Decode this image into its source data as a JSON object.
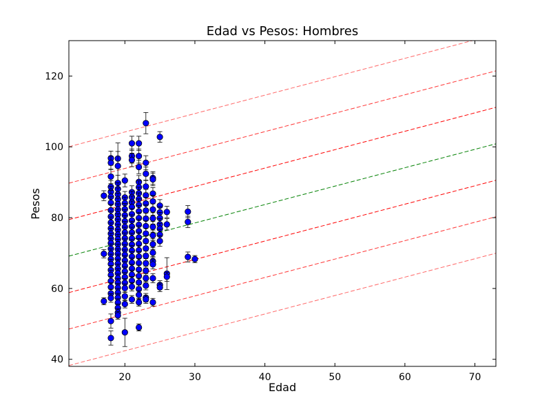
{
  "chart_data": {
    "type": "scatter",
    "title": "Edad vs Pesos: Hombres",
    "xlabel": "Edad",
    "ylabel": "Pesos",
    "xlim": [
      12,
      73
    ],
    "ylim": [
      38,
      130
    ],
    "xticks": [
      20,
      30,
      40,
      50,
      60,
      70
    ],
    "yticks": [
      40,
      60,
      80,
      100,
      120
    ],
    "grid": false,
    "marker_color": "#0000ff",
    "errorbar_color": "#000000",
    "fit_line": {
      "slope": 0.52,
      "intercept": 62.9,
      "color": "#008000"
    },
    "band_lines": [
      {
        "offset": 10.3,
        "color": "#ff0000",
        "opacity": 1.0
      },
      {
        "offset": -10.3,
        "color": "#ff0000",
        "opacity": 1.0
      },
      {
        "offset": 20.6,
        "color": "#ff0000",
        "opacity": 0.8
      },
      {
        "offset": -20.6,
        "color": "#ff0000",
        "opacity": 0.8
      },
      {
        "offset": 30.9,
        "color": "#ff0000",
        "opacity": 0.6
      },
      {
        "offset": -30.9,
        "color": "#ff0000",
        "opacity": 0.6
      }
    ],
    "points": [
      [
        17,
        86.2,
        1.4
      ],
      [
        17,
        69.8,
        1.2
      ],
      [
        17,
        56.4,
        1.0
      ],
      [
        18,
        96.8,
        2.0
      ],
      [
        18,
        95.5,
        1.8
      ],
      [
        18,
        91.6,
        2.0
      ],
      [
        18,
        88.7,
        1.8
      ],
      [
        18,
        87.3,
        1.6
      ],
      [
        18,
        85.9,
        1.8
      ],
      [
        18,
        84.2,
        1.7
      ],
      [
        18,
        82.1,
        1.7
      ],
      [
        18,
        80.3,
        1.6
      ],
      [
        18,
        78.6,
        1.6
      ],
      [
        18,
        77.0,
        1.5
      ],
      [
        18,
        75.5,
        1.5
      ],
      [
        18,
        74.1,
        1.5
      ],
      [
        18,
        72.8,
        1.4
      ],
      [
        18,
        71.2,
        1.4
      ],
      [
        18,
        69.8,
        1.4
      ],
      [
        18,
        68.3,
        1.4
      ],
      [
        18,
        66.9,
        1.3
      ],
      [
        18,
        65.2,
        1.3
      ],
      [
        18,
        63.8,
        1.3
      ],
      [
        18,
        62.1,
        1.3
      ],
      [
        18,
        60.4,
        1.2
      ],
      [
        18,
        58.6,
        1.2
      ],
      [
        18,
        57.3,
        1.2
      ],
      [
        18,
        50.8,
        2.0
      ],
      [
        18,
        46.0,
        2.0
      ],
      [
        19,
        96.7,
        2.0
      ],
      [
        19,
        94.6,
        6.5
      ],
      [
        19,
        89.8,
        2.2
      ],
      [
        19,
        88.1,
        1.8
      ],
      [
        19,
        86.6,
        1.8
      ],
      [
        19,
        85.2,
        1.7
      ],
      [
        19,
        83.8,
        1.7
      ],
      [
        19,
        82.3,
        1.6
      ],
      [
        19,
        80.9,
        1.6
      ],
      [
        19,
        79.5,
        1.6
      ],
      [
        19,
        78.1,
        1.5
      ],
      [
        19,
        76.6,
        1.5
      ],
      [
        19,
        75.2,
        1.5
      ],
      [
        19,
        73.9,
        1.4
      ],
      [
        19,
        72.5,
        1.4
      ],
      [
        19,
        71.1,
        1.4
      ],
      [
        19,
        69.8,
        1.4
      ],
      [
        19,
        68.4,
        1.3
      ],
      [
        19,
        67.0,
        1.3
      ],
      [
        19,
        65.6,
        1.3
      ],
      [
        19,
        64.3,
        1.3
      ],
      [
        19,
        62.9,
        1.2
      ],
      [
        19,
        61.6,
        1.2
      ],
      [
        19,
        60.2,
        1.2
      ],
      [
        19,
        58.8,
        1.2
      ],
      [
        19,
        57.4,
        1.2
      ],
      [
        19,
        56.0,
        1.1
      ],
      [
        19,
        54.5,
        1.1
      ],
      [
        19,
        53.2,
        1.1
      ],
      [
        19,
        52.4,
        1.1
      ],
      [
        20,
        90.5,
        1.8
      ],
      [
        20,
        85.7,
        1.7
      ],
      [
        20,
        84.1,
        1.7
      ],
      [
        20,
        82.4,
        1.6
      ],
      [
        20,
        80.7,
        1.6
      ],
      [
        20,
        79.0,
        1.6
      ],
      [
        20,
        77.4,
        1.5
      ],
      [
        20,
        75.8,
        1.5
      ],
      [
        20,
        74.2,
        1.5
      ],
      [
        20,
        72.6,
        1.4
      ],
      [
        20,
        71.0,
        1.4
      ],
      [
        20,
        69.5,
        1.4
      ],
      [
        20,
        67.9,
        1.3
      ],
      [
        20,
        66.4,
        1.3
      ],
      [
        20,
        64.8,
        1.3
      ],
      [
        20,
        63.2,
        1.3
      ],
      [
        20,
        61.6,
        1.2
      ],
      [
        20,
        60.1,
        1.2
      ],
      [
        20,
        57.8,
        1.2
      ],
      [
        20,
        55.6,
        1.1
      ],
      [
        20,
        47.6,
        4.0
      ],
      [
        21,
        101.0,
        2.0
      ],
      [
        21,
        97.4,
        2.0
      ],
      [
        21,
        96.3,
        1.9
      ],
      [
        21,
        87.2,
        1.8
      ],
      [
        21,
        85.8,
        1.7
      ],
      [
        21,
        84.4,
        1.7
      ],
      [
        21,
        83.0,
        1.7
      ],
      [
        21,
        81.0,
        1.6
      ],
      [
        21,
        79.2,
        1.6
      ],
      [
        21,
        77.5,
        1.5
      ],
      [
        21,
        75.8,
        1.5
      ],
      [
        21,
        74.1,
        1.5
      ],
      [
        21,
        72.4,
        1.4
      ],
      [
        21,
        70.7,
        1.4
      ],
      [
        21,
        69.0,
        1.4
      ],
      [
        21,
        67.3,
        1.3
      ],
      [
        21,
        65.6,
        1.3
      ],
      [
        21,
        63.9,
        1.3
      ],
      [
        21,
        62.2,
        1.2
      ],
      [
        21,
        60.5,
        1.2
      ],
      [
        21,
        56.9,
        1.1
      ],
      [
        22,
        101.0,
        2.0
      ],
      [
        22,
        97.4,
        2.0
      ],
      [
        22,
        94.3,
        1.9
      ],
      [
        22,
        90.1,
        1.8
      ],
      [
        22,
        88.6,
        1.8
      ],
      [
        22,
        86.9,
        1.7
      ],
      [
        22,
        85.3,
        1.7
      ],
      [
        22,
        83.6,
        1.7
      ],
      [
        22,
        81.8,
        1.6
      ],
      [
        22,
        79.9,
        1.6
      ],
      [
        22,
        78.0,
        1.6
      ],
      [
        22,
        76.2,
        1.5
      ],
      [
        22,
        74.4,
        1.5
      ],
      [
        22,
        72.6,
        1.5
      ],
      [
        22,
        70.8,
        1.4
      ],
      [
        22,
        69.0,
        1.4
      ],
      [
        22,
        67.2,
        1.3
      ],
      [
        22,
        65.3,
        1.3
      ],
      [
        22,
        63.5,
        1.3
      ],
      [
        22,
        61.7,
        1.2
      ],
      [
        22,
        59.8,
        1.2
      ],
      [
        22,
        58.2,
        1.2
      ],
      [
        22,
        56.1,
        1.1
      ],
      [
        22,
        49.0,
        1.0
      ],
      [
        23,
        106.7,
        3.0
      ],
      [
        23,
        95.5,
        2.0
      ],
      [
        23,
        92.4,
        1.9
      ],
      [
        23,
        88.8,
        1.8
      ],
      [
        23,
        86.3,
        1.7
      ],
      [
        23,
        84.0,
        1.7
      ],
      [
        23,
        82.0,
        1.6
      ],
      [
        23,
        79.7,
        1.6
      ],
      [
        23,
        77.6,
        1.5
      ],
      [
        23,
        75.5,
        1.5
      ],
      [
        23,
        73.4,
        1.5
      ],
      [
        23,
        71.3,
        1.4
      ],
      [
        23,
        69.2,
        1.4
      ],
      [
        23,
        67.1,
        1.3
      ],
      [
        23,
        65.0,
        1.3
      ],
      [
        23,
        62.9,
        1.3
      ],
      [
        23,
        60.8,
        1.2
      ],
      [
        23,
        57.4,
        1.2
      ],
      [
        23,
        56.9,
        1.1
      ],
      [
        24,
        91.2,
        1.8
      ],
      [
        24,
        90.8,
        1.8
      ],
      [
        24,
        86.8,
        1.7
      ],
      [
        24,
        84.6,
        1.7
      ],
      [
        24,
        82.3,
        1.6
      ],
      [
        24,
        79.8,
        1.6
      ],
      [
        24,
        77.4,
        1.5
      ],
      [
        24,
        75.0,
        1.5
      ],
      [
        24,
        72.5,
        1.5
      ],
      [
        24,
        70.1,
        1.4
      ],
      [
        24,
        67.7,
        1.3
      ],
      [
        24,
        66.8,
        1.3
      ],
      [
        24,
        62.9,
        1.3
      ],
      [
        24,
        56.1,
        1.1
      ],
      [
        25,
        102.8,
        1.5
      ],
      [
        25,
        83.4,
        1.7
      ],
      [
        25,
        81.5,
        1.6
      ],
      [
        25,
        79.9,
        1.6
      ],
      [
        25,
        78.1,
        1.6
      ],
      [
        25,
        76.9,
        1.5
      ],
      [
        25,
        75.2,
        1.5
      ],
      [
        25,
        73.4,
        1.5
      ],
      [
        25,
        61.0,
        1.2
      ],
      [
        25,
        60.3,
        1.2
      ],
      [
        26,
        81.6,
        1.6
      ],
      [
        26,
        78.1,
        1.6
      ],
      [
        26,
        64.2,
        4.5
      ],
      [
        26,
        63.3,
        1.3
      ],
      [
        29,
        81.7,
        1.7
      ],
      [
        29,
        78.8,
        1.6
      ],
      [
        29,
        68.9,
        1.4
      ],
      [
        30,
        68.3,
        1.0
      ]
    ]
  }
}
